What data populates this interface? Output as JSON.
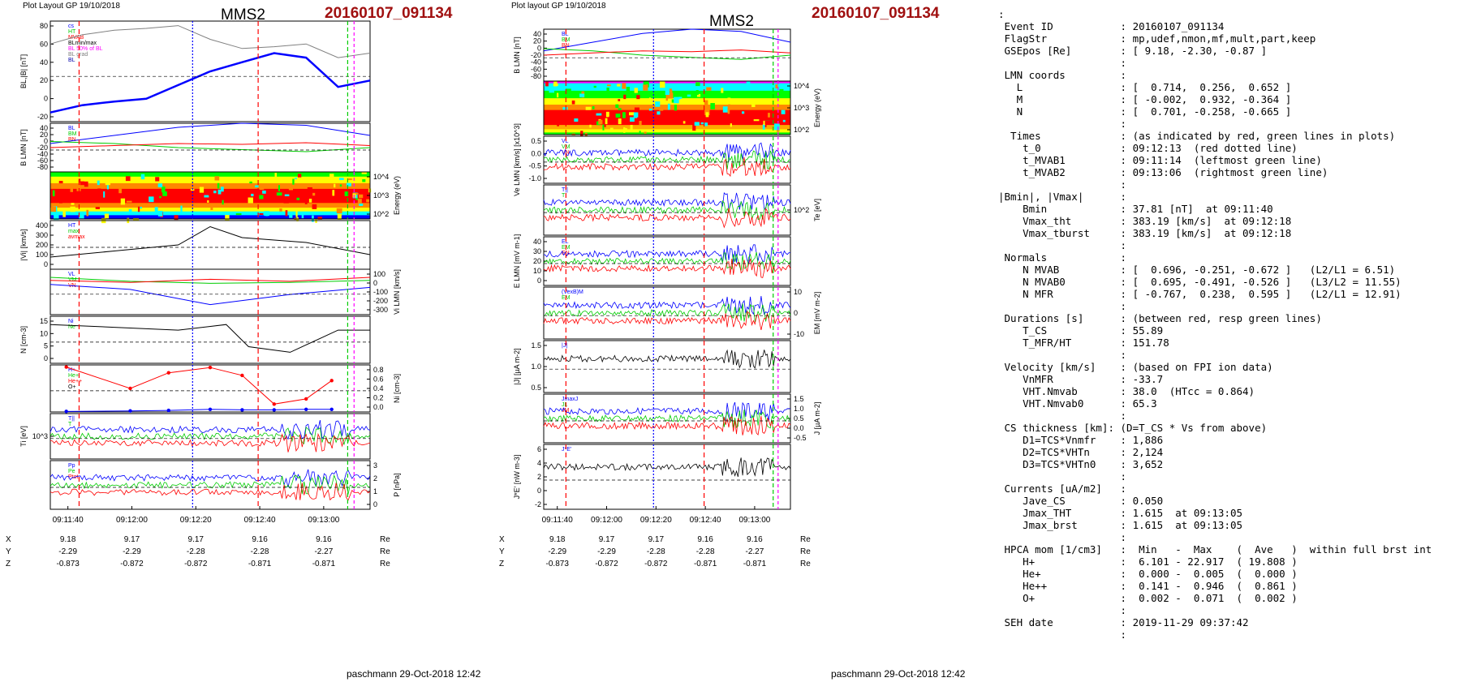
{
  "left": {
    "header_left": "Plot Layout GP 19/10/2018",
    "spacecraft": "MMS2",
    "event": "20160107_091134",
    "footer": "paschmann 29-Oct-2018 12:42"
  },
  "middle": {
    "header_left": "Plot layout GP 19/10/2018",
    "spacecraft": "MMS2",
    "event": "20160107_091134",
    "footer": "paschmann 29-Oct-2018 12:42"
  },
  "time_ticks": [
    "09:11:40",
    "09:12:00",
    "09:12:20",
    "09:12:40",
    "09:13:00"
  ],
  "position_table": {
    "rows": [
      {
        "label": "X",
        "values": [
          "9.18",
          "9.17",
          "9.17",
          "9.16",
          "9.16"
        ],
        "unit": "Re"
      },
      {
        "label": "Y",
        "values": [
          "-2.29",
          "-2.29",
          "-2.28",
          "-2.28",
          "-2.27"
        ],
        "unit": "Re"
      },
      {
        "label": "Z",
        "values": [
          "-0.873",
          "-0.872",
          "-0.872",
          "-0.871",
          "-0.871"
        ],
        "unit": "Re"
      }
    ]
  },
  "chart_data": [
    {
      "type": "line",
      "panel": "BL |B|",
      "ylabel": "BL,|B| [nT]",
      "ylim": [
        -30,
        80
      ],
      "yticks": [
        "80",
        "60",
        "40",
        "20",
        "0",
        "-20"
      ],
      "legend": [
        "cs",
        "HT",
        "MVAB",
        "BLmin/max",
        "BL 50% of BL",
        "BL grad",
        "BL"
      ],
      "series": [
        {
          "name": "|B|",
          "color": "#808080",
          "x": [
            0,
            10,
            20,
            30,
            40,
            50,
            60,
            70,
            80,
            90,
            100
          ],
          "values": [
            55,
            65,
            70,
            72,
            75,
            60,
            50,
            52,
            55,
            40,
            45
          ]
        },
        {
          "name": "BL",
          "color": "#0000ff",
          "x": [
            0,
            10,
            20,
            30,
            40,
            50,
            60,
            70,
            80,
            90,
            100
          ],
          "values": [
            -20,
            -12,
            -8,
            -5,
            10,
            25,
            35,
            45,
            40,
            8,
            15
          ]
        }
      ]
    },
    {
      "type": "line",
      "panel": "B LMN",
      "ylabel": "B LMN [nT]",
      "ylim": [
        -80,
        40
      ],
      "yticks": [
        "40",
        "20",
        "0",
        "-20",
        "-40",
        "-60",
        "-80"
      ],
      "legend": [
        "BL",
        "BM",
        "BN"
      ],
      "series": [
        {
          "name": "BL",
          "color": "#0000ff",
          "x": [
            0,
            20,
            40,
            60,
            80,
            100
          ],
          "values": [
            -10,
            10,
            30,
            40,
            35,
            10
          ]
        },
        {
          "name": "BM",
          "color": "#00cc00",
          "x": [
            0,
            20,
            40,
            60,
            80,
            100
          ],
          "values": [
            -5,
            -10,
            -20,
            -25,
            -30,
            -20
          ]
        },
        {
          "name": "BN",
          "color": "#ff0000",
          "x": [
            0,
            20,
            40,
            60,
            80,
            100
          ],
          "values": [
            -20,
            -15,
            -10,
            -12,
            -8,
            -15
          ]
        }
      ]
    },
    {
      "type": "heatmap",
      "panel": "Ion spectrogram",
      "ylabel": "Energy (eV)",
      "yticks": [
        "10^4",
        "10^3",
        "10^2"
      ]
    },
    {
      "type": "line",
      "panel": "|Vi|",
      "ylabel": "|Vi| [km/s]",
      "ylim": [
        0,
        400
      ],
      "yticks": [
        "400",
        "300",
        "200",
        "100",
        "0"
      ],
      "legend": [
        "HT",
        "max",
        "avmax"
      ],
      "series": [
        {
          "name": "Vi",
          "color": "#000000",
          "x": [
            0,
            20,
            40,
            50,
            60,
            80,
            100
          ],
          "values": [
            100,
            150,
            200,
            350,
            260,
            220,
            120
          ]
        }
      ]
    },
    {
      "type": "line",
      "panel": "Vi LMN",
      "ylabel": "Vi LMN [km/s]",
      "ylim": [
        -350,
        100
      ],
      "yticks": [
        "100",
        "0",
        "-100",
        "-200",
        "-300"
      ],
      "legend": [
        "VL",
        "VM",
        "VN"
      ],
      "series": [
        {
          "name": "VL",
          "color": "#0000ff",
          "x": [
            0,
            25,
            50,
            75,
            100
          ],
          "values": [
            -50,
            -100,
            -250,
            -150,
            -80
          ]
        },
        {
          "name": "VM",
          "color": "#00cc00",
          "x": [
            0,
            25,
            50,
            75,
            100
          ],
          "values": [
            20,
            -20,
            -40,
            -30,
            -10
          ]
        },
        {
          "name": "VN",
          "color": "#ff0000",
          "x": [
            0,
            25,
            50,
            75,
            100
          ],
          "values": [
            -10,
            -30,
            0,
            -20,
            20
          ]
        }
      ]
    },
    {
      "type": "line",
      "panel": "N",
      "ylabel": "N [cm-3]",
      "ylim": [
        0,
        17
      ],
      "yticks": [
        "15",
        "10",
        "5",
        "0"
      ],
      "legend": [
        "Ni",
        "Ne"
      ],
      "series": [
        {
          "name": "Ni",
          "color": "#000000",
          "x": [
            0,
            20,
            40,
            55,
            62,
            75,
            90,
            100
          ],
          "values": [
            14,
            13,
            12,
            14,
            6,
            4,
            12,
            12
          ]
        }
      ]
    },
    {
      "type": "line",
      "panel": "Ni HPCA",
      "ylabel": "Ni [cm-3]",
      "ylim": [
        0,
        0.9
      ],
      "yticks": [
        "0.8",
        "0.6",
        "0.4",
        "0.2",
        "0.0"
      ],
      "legend": [
        "H+",
        "He+",
        "He++",
        "O+"
      ],
      "series": [
        {
          "name": "He++",
          "color": "#ff0000",
          "x": [
            5,
            25,
            37,
            50,
            60,
            70,
            80,
            88
          ],
          "values": [
            0.86,
            0.45,
            0.75,
            0.85,
            0.7,
            0.15,
            0.25,
            0.6
          ]
        },
        {
          "name": "O+",
          "color": "#0000ff",
          "x": [
            5,
            25,
            37,
            50,
            60,
            70,
            80,
            88
          ],
          "values": [
            0.01,
            0.02,
            0.03,
            0.05,
            0.04,
            0.04,
            0.05,
            0.05
          ]
        }
      ]
    },
    {
      "type": "line",
      "panel": "Ti",
      "ylabel": "Ti [eV]",
      "yticks": [
        "10^3"
      ],
      "legend": [
        "T||",
        "T"
      ],
      "series": []
    },
    {
      "type": "line",
      "panel": "P",
      "ylabel": "P [nPa]",
      "ylim": [
        0,
        3
      ],
      "yticks": [
        "3",
        "2",
        "1",
        "0"
      ],
      "legend": [
        "Pp",
        "Pe",
        "Ptot"
      ],
      "series": []
    },
    {
      "type": "line",
      "panel": "Ve LMN",
      "ylabel": "Ve LMN [km/s] [x10^3]",
      "ylim": [
        -1.2,
        0.6
      ],
      "yticks": [
        "0.5",
        "0.0",
        "-0.5",
        "-1.0"
      ],
      "legend": [
        "VL",
        "VM",
        "VN"
      ],
      "series": []
    },
    {
      "type": "line",
      "panel": "Te",
      "ylabel": "Te [eV]",
      "yticks": [
        "10^2"
      ],
      "legend": [
        "T||",
        "T"
      ],
      "series": []
    },
    {
      "type": "line",
      "panel": "E LMN",
      "ylabel": "E LMN [mV m-1]",
      "ylim": [
        -5,
        40
      ],
      "yticks": [
        "40",
        "30",
        "20",
        "10",
        "0"
      ],
      "legend": [
        "EL",
        "EM",
        "EN"
      ],
      "series": []
    },
    {
      "type": "line",
      "panel": "EM",
      "ylabel": "EM [mV m-2]",
      "ylim": [
        -15,
        15
      ],
      "yticks": [
        "10",
        "0",
        "-10"
      ],
      "legend": [
        "(VexB)M",
        "EM"
      ],
      "series": []
    },
    {
      "type": "line",
      "panel": "|J|",
      "ylabel": "|J| [µA m-2]",
      "ylim": [
        0,
        1.6
      ],
      "yticks": [
        "1.5",
        "1.0",
        "0.5"
      ],
      "legend": [
        "|J|"
      ],
      "series": []
    },
    {
      "type": "line",
      "panel": "J",
      "ylabel": "J [µA m-2]",
      "ylim": [
        -0.7,
        1.6
      ],
      "yticks": [
        "1.5",
        "1.0",
        "0.5",
        "0.0",
        "-0.5"
      ],
      "legend": [
        "JmaxJ",
        "JL",
        "JM"
      ],
      "series": []
    },
    {
      "type": "line",
      "panel": "J*E'",
      "ylabel": "J*E' [nW m-3]",
      "ylim": [
        -4,
        6
      ],
      "yticks": [
        "6",
        "4",
        "2",
        "0",
        "-2"
      ],
      "legend": [
        "J*E'"
      ],
      "series": []
    }
  ],
  "summary": {
    "lines": [
      ":",
      " Event ID           : 20160107_091134",
      " FlagStr            : mp,udef,nmon,mf,mult,part,keep",
      " GSEpos [Re]        : [ 9.18, -2.30, -0.87 ]",
      "                    :",
      " LMN coords         :",
      "   L                : [  0.714,  0.256,  0.652 ]",
      "   M                : [ -0.002,  0.932, -0.364 ]",
      "   N                : [  0.701, -0.258, -0.665 ]",
      "                    :",
      "  Times             : (as indicated by red, green lines in plots)",
      "    t_0             : 09:12:13  (red dotted line)",
      "    t_MVAB1         : 09:11:14  (leftmost green line)",
      "    t_MVAB2         : 09:13:06  (rightmost green line)",
      "                    :",
      "|Bmin|, |Vmax|      :",
      "    Bmin            : 37.81 [nT]  at 09:11:40",
      "    Vmax_tht        : 383.19 [km/s]  at 09:12:18",
      "    Vmax_tburst     : 383.19 [km/s]  at 09:12:18",
      "                    :",
      " Normals            :",
      "    N MVAB          : [  0.696, -0.251, -0.672 ]   (L2/L1 = 6.51)",
      "    N MVAB0         : [  0.695, -0.491, -0.526 ]   (L3/L2 = 11.55)",
      "    N MFR           : [ -0.767,  0.238,  0.595 ]   (L2/L1 = 12.91)",
      "                    :",
      " Durations [s]      : (between red, resp green lines)",
      "    T_CS            : 55.89",
      "    T_MFR/HT        : 151.78",
      "                    :",
      " Velocity [km/s]    : (based on FPI ion data)",
      "    VnMFR           : -33.7",
      "    VHT.Nmvab       : 38.0  (HTcc = 0.864)",
      "    VHT.Nmvab0      : 65.3",
      "                    :",
      " CS thickness [km]: (D=T_CS * Vs from above)",
      "    D1=TCS*Vnmfr    : 1,886",
      "    D2=TCS*VHTn     : 2,124",
      "    D3=TCS*VHTn0    : 3,652",
      "                    :",
      " Currents [uA/m2]   :",
      "    Jave_CS         : 0.050",
      "    Jmax_THT        : 1.615  at 09:13:05",
      "    Jmax_brst       : 1.615  at 09:13:05",
      "                    :",
      " HPCA mom [1/cm3]   :  Min   -  Max    (  Ave   )  within full brst int",
      "    H+              :  6.101 - 22.917  ( 19.808 )",
      "    He+             :  0.000 -  0.005  (  0.000 )",
      "    He++            :  0.141 -  0.946  (  0.861 )",
      "    O+              :  0.002 -  0.071  (  0.002 )",
      "                    :",
      " SEH date           : 2019-11-29 09:37:42",
      "                    :"
    ]
  },
  "colors": {
    "event_title": "#a01010",
    "marker_red": "#ff0000",
    "marker_blue": "#0000ff",
    "marker_green": "#00cc00"
  }
}
